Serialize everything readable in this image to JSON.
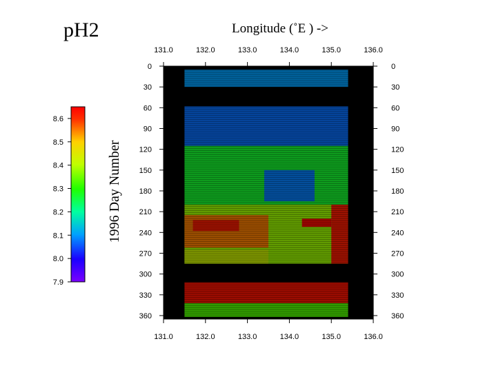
{
  "chart_data": {
    "type": "heatmap",
    "title": "pH2",
    "xlabel": "Longitude (˚E ) ->",
    "ylabel": "1996 Day Number",
    "xlim": [
      131.0,
      136.0
    ],
    "ylim": [
      0,
      365
    ],
    "x_ticks": [
      "131.0",
      "132.0",
      "133.0",
      "134.0",
      "135.0",
      "136.0"
    ],
    "y_ticks": [
      "0",
      "30",
      "60",
      "90",
      "120",
      "150",
      "180",
      "210",
      "240",
      "270",
      "300",
      "330",
      "360"
    ],
    "colorbar": {
      "range": [
        7.9,
        8.65
      ],
      "ticks": [
        "7.9",
        "8.0",
        "8.1",
        "8.2",
        "8.3",
        "8.4",
        "8.5",
        "8.6"
      ]
    },
    "data_extent": {
      "lon": [
        131.5,
        135.4
      ]
    },
    "no_data_days": [
      [
        0,
        5
      ],
      [
        30,
        58
      ],
      [
        285,
        312
      ],
      [
        362,
        365
      ]
    ],
    "data_days": [
      [
        5,
        30
      ],
      [
        58,
        285
      ],
      [
        312,
        362
      ]
    ],
    "regions": [
      {
        "days": [
          5,
          30
        ],
        "lon": [
          131.5,
          135.4
        ],
        "ph": 8.1
      },
      {
        "days": [
          58,
          115
        ],
        "lon": [
          131.5,
          135.4
        ],
        "ph": 8.07
      },
      {
        "days": [
          115,
          200
        ],
        "lon": [
          131.5,
          135.4
        ],
        "ph": 8.27
      },
      {
        "days": [
          150,
          195
        ],
        "lon": [
          133.4,
          134.6
        ],
        "ph": 8.08
      },
      {
        "days": [
          200,
          285
        ],
        "lon": [
          131.5,
          135.4
        ],
        "ph": 8.38
      },
      {
        "days": [
          215,
          262
        ],
        "lon": [
          131.5,
          133.5
        ],
        "ph": 8.55
      },
      {
        "days": [
          222,
          238
        ],
        "lon": [
          131.7,
          132.8
        ],
        "ph": 8.62
      },
      {
        "days": [
          220,
          232
        ],
        "lon": [
          134.3,
          135.0
        ],
        "ph": 8.64
      },
      {
        "days": [
          200,
          285
        ],
        "lon": [
          135.0,
          135.4
        ],
        "ph": 8.62
      },
      {
        "days": [
          265,
          285
        ],
        "lon": [
          131.5,
          133.5
        ],
        "ph": 8.42
      },
      {
        "days": [
          312,
          342
        ],
        "lon": [
          131.5,
          135.4
        ],
        "ph": 8.63
      },
      {
        "days": [
          342,
          362
        ],
        "lon": [
          131.5,
          135.4
        ],
        "ph": 8.33
      }
    ]
  }
}
